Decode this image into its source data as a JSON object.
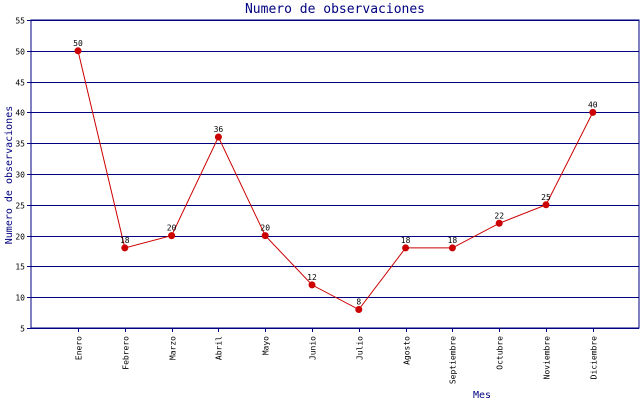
{
  "chart_data": {
    "type": "line",
    "title": "Numero de observaciones",
    "xlabel": "Mes",
    "ylabel": "Numero de observaciones",
    "categories": [
      "Enero",
      "Febrero",
      "Marzo",
      "Abril",
      "Mayo",
      "Junio",
      "Julio",
      "Agosto",
      "Septiembre",
      "Octubre",
      "Noviembre",
      "Diciembre"
    ],
    "values": [
      50,
      18,
      20,
      36,
      20,
      12,
      8,
      18,
      18,
      22,
      25,
      40
    ],
    "ylim": [
      5,
      55
    ],
    "yticks": [
      5,
      10,
      15,
      20,
      25,
      30,
      35,
      40,
      45,
      50,
      55
    ],
    "grid": true,
    "colors": {
      "line": "#cc0000",
      "marker": "#cc0000",
      "grid": "#000080",
      "axis": "#000080"
    }
  }
}
